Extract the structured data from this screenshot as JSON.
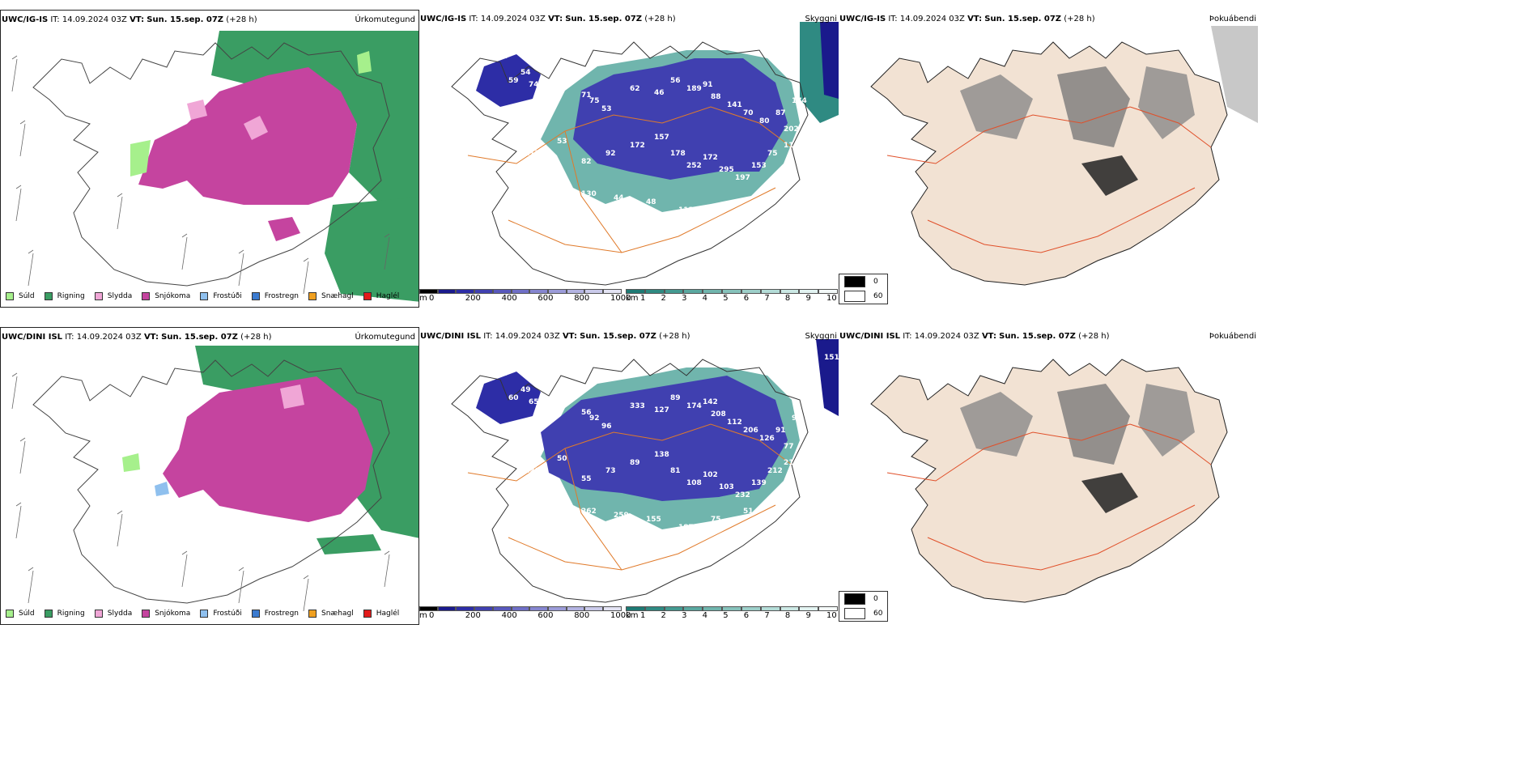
{
  "rows": [
    {
      "model": "UWC/IG-IS",
      "it_label": "IT:",
      "it_value": "14.09.2024 03Z",
      "vt_label": "VT:",
      "vt_value": "Sun. 15.sep. 07Z",
      "lead": "(+28 h)",
      "cloud_values": [
        "111",
        "74",
        "65",
        "59",
        "54",
        "71",
        "75",
        "53",
        "62",
        "46",
        "56",
        "189",
        "91",
        "88",
        "141",
        "70",
        "80",
        "87",
        "174",
        "202",
        "115",
        "53",
        "82",
        "92",
        "172",
        "157",
        "178",
        "252",
        "172",
        "295",
        "197",
        "153",
        "75",
        "114",
        "130",
        "44",
        "48",
        "113"
      ]
    },
    {
      "model": "UWC/DINI ISL",
      "it_label": "IT:",
      "it_value": "14.09.2024 03Z",
      "vt_label": "VT:",
      "vt_value": "Sun. 15.sep. 07Z",
      "lead": "(+28 h)",
      "cloud_values": [
        "124",
        "65",
        "61",
        "60",
        "49",
        "56",
        "92",
        "96",
        "333",
        "127",
        "89",
        "174",
        "142",
        "208",
        "112",
        "206",
        "126",
        "91",
        "93",
        "77",
        "120",
        "50",
        "55",
        "73",
        "89",
        "138",
        "81",
        "108",
        "102",
        "103",
        "232",
        "139",
        "212",
        "216",
        "262",
        "259",
        "155",
        "187",
        "75",
        "51",
        "70",
        "35",
        "151"
      ]
    }
  ],
  "products": {
    "precip": "Úrkomutegund",
    "cloud": "Skyggni",
    "fog": "Þokuábendi"
  },
  "precip_legend": [
    {
      "label": "Súld",
      "color": "#a6f08c"
    },
    {
      "label": "Rigning",
      "color": "#3a9d63"
    },
    {
      "label": "Slydda",
      "color": "#f0a6d6"
    },
    {
      "label": "Snjókoma",
      "color": "#c5449f"
    },
    {
      "label": "Frostúði",
      "color": "#8fc0ee"
    },
    {
      "label": "Frostregn",
      "color": "#3b7bd0"
    },
    {
      "label": "Snæhagl",
      "color": "#f0a020"
    },
    {
      "label": "Haglél",
      "color": "#e21b1b"
    }
  ],
  "ceiling_bar": {
    "unit": "m",
    "ticks": [
      "0",
      "200",
      "400",
      "600",
      "800",
      "1000"
    ],
    "colors": [
      "#000000",
      "#1a1a8c",
      "#2d2da6",
      "#4040b0",
      "#5858bc",
      "#6f6fc6",
      "#8585cf",
      "#9b9bd8",
      "#b3b3e1",
      "#cacaea",
      "#e3e3f3"
    ]
  },
  "vis_bar": {
    "unit": "km",
    "ticks": [
      "1",
      "2",
      "3",
      "4",
      "5",
      "6",
      "7",
      "8",
      "9",
      "10"
    ],
    "colors": [
      "#1e7a74",
      "#2f8a82",
      "#449a91",
      "#5aa8a0",
      "#70b5ad",
      "#86c2bb",
      "#9dcfc9",
      "#b4dcd7",
      "#cbe8e4",
      "#e2f3f1",
      "#f4faf9"
    ]
  },
  "fog_legend": [
    {
      "label": "0",
      "color": "#000000"
    },
    {
      "label": "60",
      "color": "#ffffff"
    }
  ]
}
